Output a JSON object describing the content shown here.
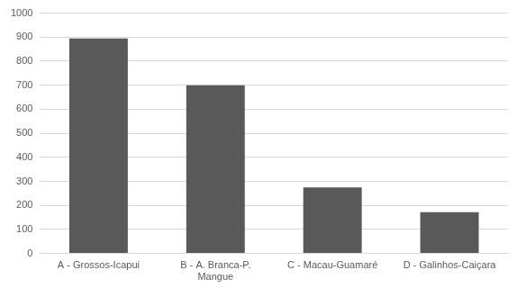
{
  "chart_data": {
    "type": "bar",
    "categories": [
      "A - Grossos-Icapui",
      "B - A. Branca-P. Mangue",
      "C - Macau-Guamaré",
      "D - Galinhos-Caiçara"
    ],
    "values": [
      895,
      700,
      275,
      172
    ],
    "color": "#595959",
    "ylim": [
      0,
      1000
    ],
    "yticks": [
      0,
      100,
      200,
      300,
      400,
      500,
      600,
      700,
      800,
      900,
      1000
    ],
    "grid": true
  }
}
